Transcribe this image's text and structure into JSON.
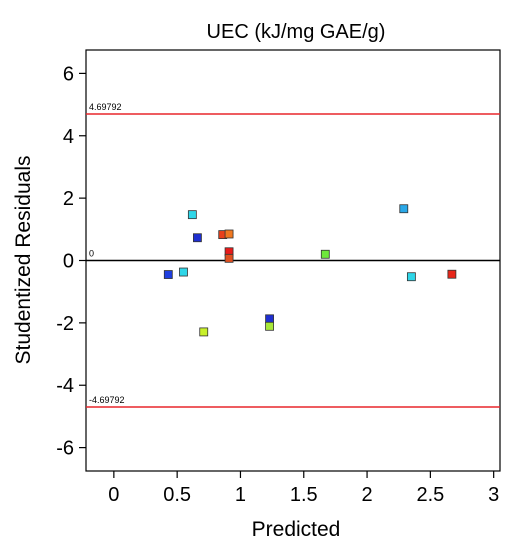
{
  "chart_data": {
    "type": "scatter",
    "title": "UEC  (kJ/mg GAE/g)",
    "xlabel": "Predicted",
    "ylabel": "Studentized Residuals",
    "xlim": [
      -0.22,
      3.05
    ],
    "ylim": [
      -6.75,
      6.75
    ],
    "x_ticks": [
      0,
      0.5,
      1,
      1.5,
      2,
      2.5,
      3
    ],
    "x_tick_labels": [
      "0",
      "0.5",
      "1",
      "1.5",
      "2",
      "2.5",
      "3"
    ],
    "y_ticks": [
      -6,
      -4,
      -2,
      0,
      2,
      4,
      6
    ],
    "y_tick_labels": [
      "-6",
      "-4",
      "-2",
      "0",
      "2",
      "4",
      "6"
    ],
    "grid": false,
    "reference_lines": [
      {
        "y": 4.69792,
        "label": "4.69792",
        "color": "#e8262b"
      },
      {
        "y": 0,
        "label": "0",
        "color": "#000000"
      },
      {
        "y": -4.69792,
        "label": "-4.69792",
        "color": "#e8262b"
      }
    ],
    "points": [
      {
        "x": 0.43,
        "y": -0.45,
        "color": "#1f3fe0"
      },
      {
        "x": 0.55,
        "y": -0.37,
        "color": "#2fd6e8"
      },
      {
        "x": 0.62,
        "y": 1.47,
        "color": "#2fd6e8"
      },
      {
        "x": 0.66,
        "y": 0.73,
        "color": "#1f2fd0"
      },
      {
        "x": 0.71,
        "y": -2.29,
        "color": "#c8f02a"
      },
      {
        "x": 0.86,
        "y": 0.83,
        "color": "#e8401a"
      },
      {
        "x": 0.91,
        "y": 0.85,
        "color": "#f07820"
      },
      {
        "x": 0.91,
        "y": 0.28,
        "color": "#e81a1a"
      },
      {
        "x": 0.91,
        "y": 0.07,
        "color": "#e05020"
      },
      {
        "x": 1.23,
        "y": -1.87,
        "color": "#1f2fd0"
      },
      {
        "x": 1.23,
        "y": -2.11,
        "color": "#a8e83a"
      },
      {
        "x": 1.67,
        "y": 0.2,
        "color": "#6ee83a"
      },
      {
        "x": 2.29,
        "y": 1.66,
        "color": "#2aa8e8"
      },
      {
        "x": 2.35,
        "y": -0.52,
        "color": "#2fd6e8"
      },
      {
        "x": 2.67,
        "y": -0.44,
        "color": "#e8261a"
      }
    ]
  }
}
